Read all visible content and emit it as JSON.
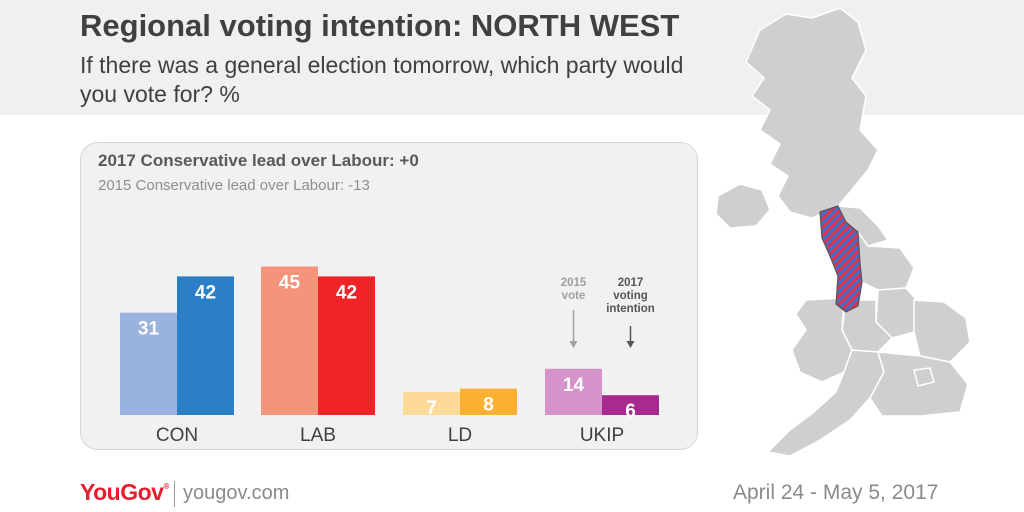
{
  "header": {
    "title": "Regional voting intention: NORTH WEST",
    "subtitle": "If there was a general election tomorrow, which party would you vote for? %"
  },
  "panel": {
    "lead_2017": "2017 Conservative lead over Labour: +0",
    "lead_2015": "2015 Conservative lead over Labour: -13"
  },
  "annotations": {
    "vote_2015": [
      "2015",
      "vote"
    ],
    "intention_2017": [
      "2017",
      "voting",
      "intention"
    ]
  },
  "chart_data": {
    "type": "bar",
    "categories": [
      "CON",
      "LAB",
      "LD",
      "UKIP"
    ],
    "series": [
      {
        "name": "2015 vote",
        "values": [
          31,
          45,
          7,
          14
        ]
      },
      {
        "name": "2017 voting intention",
        "values": [
          42,
          42,
          8,
          6
        ]
      }
    ],
    "colors": {
      "2015": [
        "#99b3de",
        "#f4957b",
        "#fdd99a",
        "#d593c9"
      ],
      "2017": [
        "#2b7fc6",
        "#ee2429",
        "#fbb033",
        "#a72b8e"
      ]
    },
    "ylim": [
      0,
      50
    ],
    "grid": false,
    "legend": "none"
  },
  "map": {
    "highlight_region": "North West",
    "highlight_colors": [
      "#e0304a",
      "#3f6fc9"
    ]
  },
  "footer": {
    "brand": "YouGov",
    "brand_mark": "®",
    "url": "yougov.com",
    "date_range": "April 24 - May 5, 2017"
  }
}
